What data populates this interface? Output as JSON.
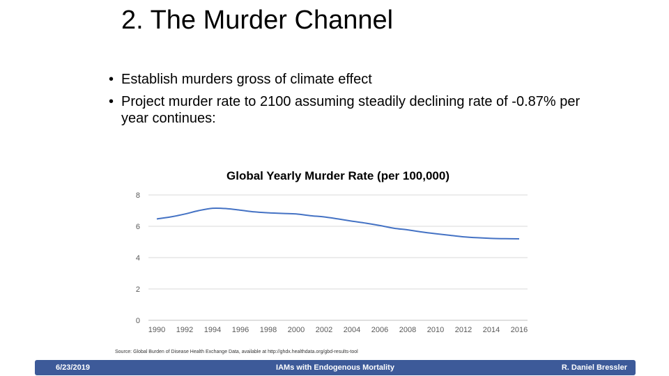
{
  "slide": {
    "title": "2. The Murder Channel",
    "bullets": [
      "Establish murders gross of climate effect",
      "Project murder rate to 2100 assuming steadily declining rate of -0.87% per year continues:"
    ],
    "source": "Source: Global Burden of Disease Health Exchange Data, available at http://ghdx.healthdata.org/gbd-results-tool"
  },
  "footer": {
    "date": "6/23/2019",
    "center": "IAMs with Endogenous Mortality",
    "author": "R. Daniel Bressler"
  },
  "chart_data": {
    "type": "line",
    "title": "Global Yearly Murder Rate (per 100,000)",
    "xlabel": "",
    "ylabel": "",
    "ylim": [
      0,
      8
    ],
    "yticks": [
      0,
      2,
      4,
      6,
      8
    ],
    "xticks": [
      1990,
      1992,
      1994,
      1996,
      1998,
      2000,
      2002,
      2004,
      2006,
      2008,
      2010,
      2012,
      2014,
      2016
    ],
    "grid": true,
    "line_color": "#4472c4",
    "series": [
      {
        "x": [
          1990,
          1991,
          1992,
          1993,
          1994,
          1995,
          1996,
          1997,
          1998,
          1999,
          2000,
          2001,
          2002,
          2003,
          2004,
          2005,
          2006,
          2007,
          2008,
          2009,
          2010,
          2011,
          2012,
          2013,
          2014,
          2015,
          2016
        ],
        "values": [
          6.47,
          6.6,
          6.78,
          7.0,
          7.15,
          7.13,
          7.03,
          6.92,
          6.86,
          6.82,
          6.79,
          6.68,
          6.6,
          6.47,
          6.33,
          6.2,
          6.05,
          5.88,
          5.77,
          5.64,
          5.53,
          5.43,
          5.33,
          5.27,
          5.23,
          5.21,
          5.2
        ]
      }
    ]
  }
}
